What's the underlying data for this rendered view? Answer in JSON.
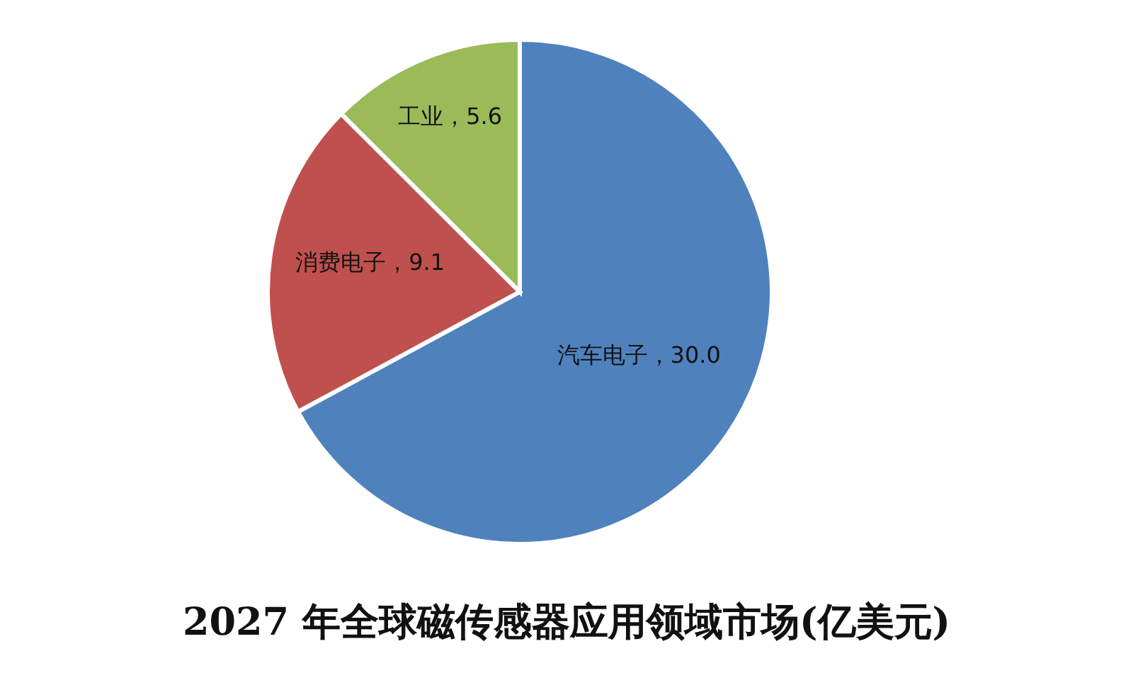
{
  "chart_data": {
    "type": "pie",
    "title": "2027 年全球磁传感器应用领域市场(亿美元)",
    "categories": [
      "汽车电子",
      "消费电子",
      "工业"
    ],
    "values": [
      30.0,
      9.1,
      5.6
    ],
    "value_labels": [
      "30.0",
      "9.1",
      "5.6"
    ],
    "colors": [
      "#4f81bd",
      "#c0504d",
      "#9bbb59"
    ],
    "legend": false
  }
}
